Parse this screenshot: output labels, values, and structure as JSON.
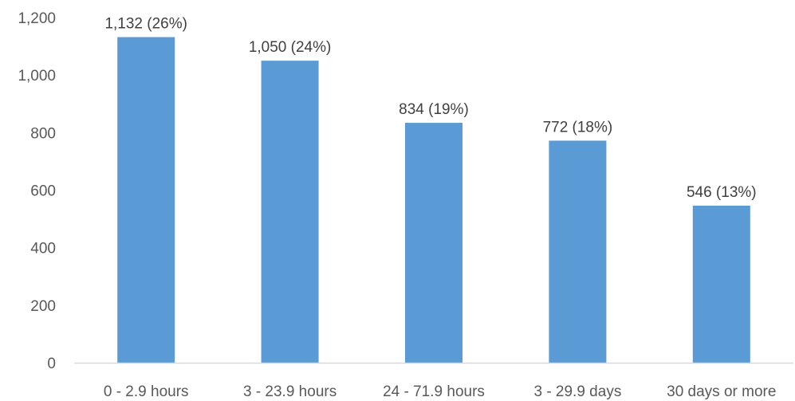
{
  "chart_data": {
    "type": "bar",
    "title": "",
    "xlabel": "",
    "ylabel": "",
    "categories": [
      "0 - 2.9 hours",
      "3 - 23.9 hours",
      "24 - 71.9 hours",
      "3 - 29.9 days",
      "30 days or more"
    ],
    "values": [
      1132,
      1050,
      834,
      772,
      546
    ],
    "data_labels": [
      "1,132 (26%)",
      "1,050 (24%)",
      "834 (19%)",
      "772 (18%)",
      "546 (13%)"
    ],
    "ylim": [
      0,
      1200
    ],
    "yticks": [
      0,
      200,
      400,
      600,
      800,
      1000,
      1200
    ],
    "ytick_labels": [
      "0",
      "200",
      "400",
      "600",
      "800",
      "1,000",
      "1,200"
    ],
    "grid": false,
    "legend": "none",
    "colors": {
      "bar": "#5B9BD5",
      "axis": "#D9D9D9",
      "tick_text": "#595959",
      "label_text": "#404040"
    }
  }
}
